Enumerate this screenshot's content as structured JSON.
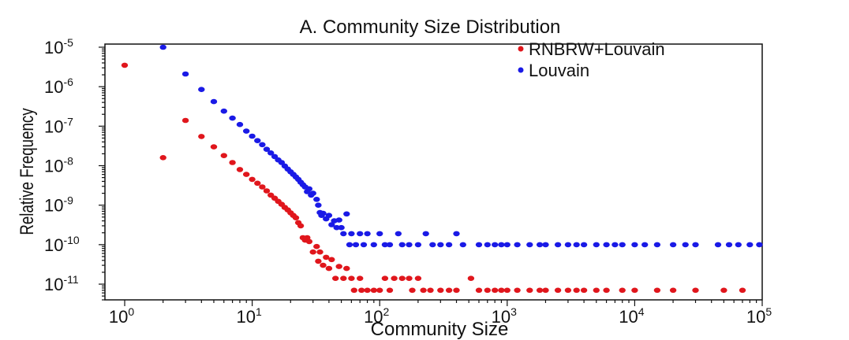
{
  "chart_data": {
    "type": "scatter",
    "title": "A. Community Size Distribution",
    "xlabel": "Community Size",
    "ylabel": "Relative Frequency",
    "xscale": "log",
    "yscale": "log",
    "xlim": [
      0.7,
      100000
    ],
    "ylim": [
      4e-12,
      1.2e-05
    ],
    "x_ticks": [
      {
        "value": 1,
        "base": "10",
        "exp": "0"
      },
      {
        "value": 10,
        "base": "10",
        "exp": "1"
      },
      {
        "value": 100,
        "base": "10",
        "exp": "2"
      },
      {
        "value": 1000,
        "base": "10",
        "exp": "3"
      },
      {
        "value": 10000,
        "base": "10",
        "exp": "4"
      },
      {
        "value": 100000,
        "base": "10",
        "exp": "5"
      }
    ],
    "y_ticks": [
      {
        "value": 1e-05,
        "base": "10",
        "exp": "-5"
      },
      {
        "value": 1e-06,
        "base": "10",
        "exp": "-6"
      },
      {
        "value": 1e-07,
        "base": "10",
        "exp": "-7"
      },
      {
        "value": 1e-08,
        "base": "10",
        "exp": "-8"
      },
      {
        "value": 1e-09,
        "base": "10",
        "exp": "-9"
      },
      {
        "value": 1e-10,
        "base": "10",
        "exp": "-10"
      },
      {
        "value": 1e-11,
        "base": "10",
        "exp": "-11"
      }
    ],
    "legend_position": "top-right",
    "series": [
      {
        "name": "RNBRW+Louvain",
        "color": "#e0161c",
        "points": [
          [
            1,
            3.5e-06
          ],
          [
            2,
            1.6e-08
          ],
          [
            3,
            1.4e-07
          ],
          [
            4,
            5.5e-08
          ],
          [
            5,
            3e-08
          ],
          [
            6,
            1.8e-08
          ],
          [
            7,
            1.2e-08
          ],
          [
            8,
            8e-09
          ],
          [
            9,
            6e-09
          ],
          [
            10,
            4.5e-09
          ],
          [
            11,
            3.6e-09
          ],
          [
            12,
            2.9e-09
          ],
          [
            13,
            2.3e-09
          ],
          [
            14,
            1.8e-09
          ],
          [
            15,
            1.5e-09
          ],
          [
            16,
            1.25e-09
          ],
          [
            17,
            1.05e-09
          ],
          [
            18,
            8.8e-10
          ],
          [
            19,
            7.6e-10
          ],
          [
            20,
            6.4e-10
          ],
          [
            21,
            5.5e-10
          ],
          [
            22,
            4.8e-10
          ],
          [
            23,
            3.6e-10
          ],
          [
            24,
            3e-10
          ],
          [
            25,
            1.5e-10
          ],
          [
            26,
            1.3e-10
          ],
          [
            27,
            1.5e-10
          ],
          [
            28,
            1.2e-10
          ],
          [
            30,
            6.5e-11
          ],
          [
            32,
            9e-11
          ],
          [
            33,
            3.8e-11
          ],
          [
            34,
            6.5e-11
          ],
          [
            36,
            3e-11
          ],
          [
            38,
            4.8e-11
          ],
          [
            40,
            2.5e-11
          ],
          [
            42,
            4.2e-11
          ],
          [
            45,
            1.4e-11
          ],
          [
            48,
            2.8e-11
          ],
          [
            52,
            1.4e-11
          ],
          [
            55,
            2.5e-11
          ],
          [
            60,
            1.4e-11
          ],
          [
            63,
            7e-12
          ],
          [
            70,
            1.4e-11
          ],
          [
            72,
            7e-12
          ],
          [
            80,
            7e-12
          ],
          [
            90,
            7e-12
          ],
          [
            100,
            7e-12
          ],
          [
            110,
            1.4e-11
          ],
          [
            120,
            7e-12
          ],
          [
            130,
            1.4e-11
          ],
          [
            150,
            1.4e-11
          ],
          [
            170,
            1.4e-11
          ],
          [
            180,
            7e-12
          ],
          [
            200,
            1.4e-11
          ],
          [
            220,
            7e-12
          ],
          [
            250,
            7e-12
          ],
          [
            300,
            7e-12
          ],
          [
            350,
            7e-12
          ],
          [
            400,
            7e-12
          ],
          [
            520,
            1.4e-11
          ],
          [
            600,
            7e-12
          ],
          [
            700,
            7e-12
          ],
          [
            800,
            7e-12
          ],
          [
            900,
            7e-12
          ],
          [
            1000,
            7e-12
          ],
          [
            1200,
            7e-12
          ],
          [
            1500,
            7e-12
          ],
          [
            1800,
            7e-12
          ],
          [
            2000,
            7e-12
          ],
          [
            2500,
            7e-12
          ],
          [
            3000,
            7e-12
          ],
          [
            3500,
            7e-12
          ],
          [
            4000,
            7e-12
          ],
          [
            5000,
            7e-12
          ],
          [
            6000,
            7e-12
          ],
          [
            8000,
            7e-12
          ],
          [
            10000,
            7e-12
          ],
          [
            15000,
            7e-12
          ],
          [
            20000,
            7e-12
          ],
          [
            30000,
            7e-12
          ],
          [
            50000,
            7e-12
          ],
          [
            70000,
            7e-12
          ]
        ]
      },
      {
        "name": "Louvain",
        "color": "#1a1ae6",
        "points": [
          [
            2,
            1e-05
          ],
          [
            3,
            2.1e-06
          ],
          [
            4,
            8.5e-07
          ],
          [
            5,
            4.2e-07
          ],
          [
            6,
            2.4e-07
          ],
          [
            7,
            1.6e-07
          ],
          [
            8,
            1.1e-07
          ],
          [
            9,
            7.5e-08
          ],
          [
            10,
            5.6e-08
          ],
          [
            11,
            4.3e-08
          ],
          [
            12,
            3.4e-08
          ],
          [
            13,
            2.6e-08
          ],
          [
            14,
            2.1e-08
          ],
          [
            15,
            1.7e-08
          ],
          [
            16,
            1.4e-08
          ],
          [
            17,
            1.2e-08
          ],
          [
            18,
            9.8e-09
          ],
          [
            19,
            8.2e-09
          ],
          [
            20,
            7e-09
          ],
          [
            21,
            6e-09
          ],
          [
            22,
            5.2e-09
          ],
          [
            23,
            4.5e-09
          ],
          [
            24,
            3.8e-09
          ],
          [
            25,
            3.3e-09
          ],
          [
            26,
            2.9e-09
          ],
          [
            27,
            2.2e-09
          ],
          [
            28,
            2.6e-09
          ],
          [
            29,
            1.8e-09
          ],
          [
            30,
            2e-09
          ],
          [
            32,
            1.4e-09
          ],
          [
            33,
            1e-09
          ],
          [
            34,
            6.5e-10
          ],
          [
            35,
            5.5e-10
          ],
          [
            36,
            6.2e-10
          ],
          [
            38,
            4.5e-10
          ],
          [
            40,
            5.5e-10
          ],
          [
            42,
            3.2e-10
          ],
          [
            44,
            4e-10
          ],
          [
            46,
            2.7e-10
          ],
          [
            48,
            4.2e-10
          ],
          [
            50,
            2.7e-10
          ],
          [
            52,
            1.9e-10
          ],
          [
            55,
            6e-10
          ],
          [
            58,
            1e-10
          ],
          [
            60,
            1.9e-10
          ],
          [
            65,
            1e-10
          ],
          [
            70,
            1.9e-10
          ],
          [
            75,
            1e-10
          ],
          [
            80,
            1.9e-10
          ],
          [
            90,
            1e-10
          ],
          [
            100,
            1.9e-10
          ],
          [
            110,
            1e-10
          ],
          [
            120,
            1e-10
          ],
          [
            140,
            1.9e-10
          ],
          [
            150,
            1e-10
          ],
          [
            170,
            1e-10
          ],
          [
            200,
            1e-10
          ],
          [
            230,
            1.9e-10
          ],
          [
            260,
            1e-10
          ],
          [
            300,
            1e-10
          ],
          [
            350,
            1e-10
          ],
          [
            400,
            1.9e-10
          ],
          [
            450,
            1e-10
          ],
          [
            600,
            1e-10
          ],
          [
            700,
            1e-10
          ],
          [
            800,
            1e-10
          ],
          [
            900,
            1e-10
          ],
          [
            1000,
            1e-10
          ],
          [
            1200,
            1e-10
          ],
          [
            1500,
            1e-10
          ],
          [
            1800,
            1e-10
          ],
          [
            2000,
            1e-10
          ],
          [
            2500,
            1e-10
          ],
          [
            3000,
            1e-10
          ],
          [
            3500,
            1e-10
          ],
          [
            4000,
            1e-10
          ],
          [
            5000,
            1e-10
          ],
          [
            6000,
            1e-10
          ],
          [
            7000,
            1e-10
          ],
          [
            8000,
            1e-10
          ],
          [
            10000,
            1e-10
          ],
          [
            12000,
            1e-10
          ],
          [
            15000,
            1e-10
          ],
          [
            20000,
            1e-10
          ],
          [
            25000,
            1e-10
          ],
          [
            30000,
            1e-10
          ],
          [
            45000,
            1e-10
          ],
          [
            55000,
            1e-10
          ],
          [
            65000,
            1e-10
          ],
          [
            80000,
            1e-10
          ],
          [
            95000,
            1e-10
          ]
        ]
      }
    ]
  }
}
